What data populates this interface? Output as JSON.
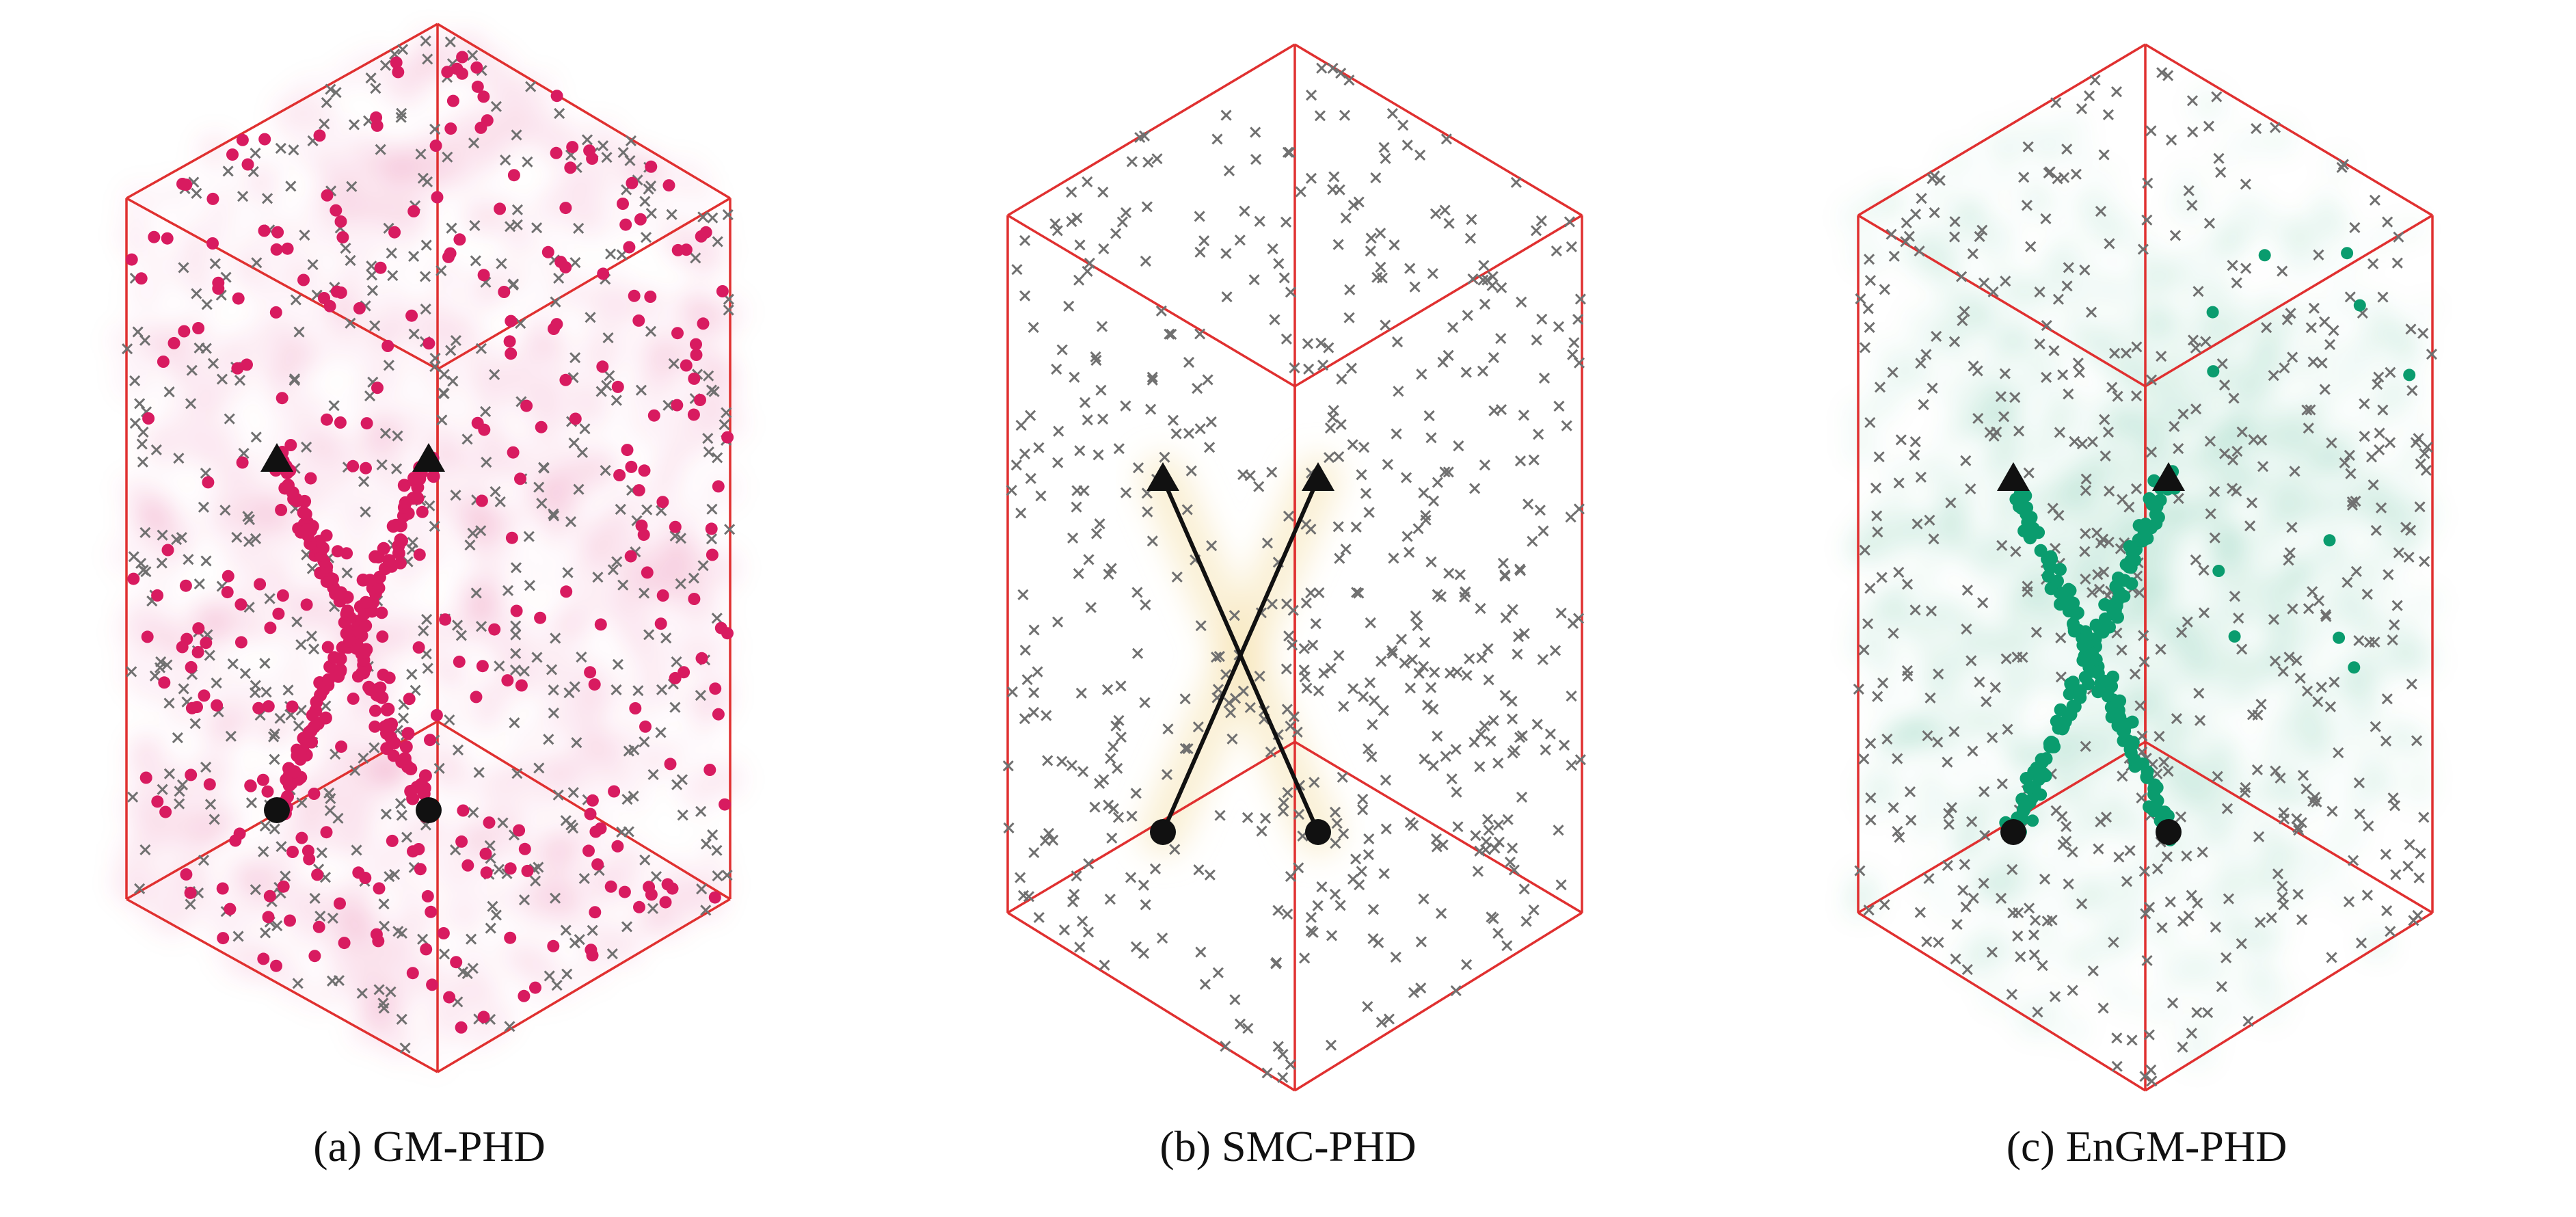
{
  "figure": {
    "panels": [
      {
        "tag": "(a)",
        "label": "GM-PHD"
      },
      {
        "tag": "(b)",
        "label": "SMC-PHD"
      },
      {
        "tag": "(c)",
        "label": "EnGM-PHD"
      }
    ]
  },
  "colors": {
    "box_edge": "#e03030",
    "clutter_marker": "#707070",
    "truth": "#111111",
    "gm_phd": "#d81b60",
    "smc_phd": "#f5e3b3",
    "engm_phd": "#0a9c6e"
  },
  "chart_data": [
    {
      "type": "scatter",
      "title": "",
      "view": "3d",
      "legend": "none",
      "grid": false,
      "estimate_style": "dots",
      "series": [
        {
          "role": "clutter",
          "marker": "x",
          "count": 520
        },
        {
          "role": "true-track-1",
          "marker": "line",
          "start_marker": "circle",
          "end_marker": "triangle"
        },
        {
          "role": "true-track-2",
          "marker": "line",
          "start_marker": "circle",
          "end_marker": "triangle"
        },
        {
          "role": "estimates",
          "marker": "dot",
          "count": 320,
          "track_points": 90
        },
        {
          "role": "intensity-cloud",
          "spread": "whole-box"
        }
      ]
    },
    {
      "type": "scatter",
      "title": "",
      "view": "3d",
      "legend": "none",
      "grid": false,
      "estimate_style": "glow",
      "series": [
        {
          "role": "clutter",
          "marker": "x",
          "count": 560
        },
        {
          "role": "true-track-1",
          "marker": "line",
          "start_marker": "circle",
          "end_marker": "triangle"
        },
        {
          "role": "true-track-2",
          "marker": "line",
          "start_marker": "circle",
          "end_marker": "triangle"
        },
        {
          "role": "estimates",
          "marker": "glow-band",
          "count": 0,
          "track_points": 0
        },
        {
          "role": "intensity-cloud",
          "spread": "near-tracks"
        }
      ]
    },
    {
      "type": "scatter",
      "title": "",
      "view": "3d",
      "legend": "none",
      "grid": false,
      "estimate_style": "dots",
      "series": [
        {
          "role": "clutter",
          "marker": "x",
          "count": 540
        },
        {
          "role": "true-track-1",
          "marker": "line",
          "start_marker": "circle",
          "end_marker": "triangle"
        },
        {
          "role": "true-track-2",
          "marker": "line",
          "start_marker": "circle",
          "end_marker": "triangle"
        },
        {
          "role": "estimates",
          "marker": "dot",
          "count": 14,
          "track_points": 110
        },
        {
          "role": "intensity-cloud",
          "spread": "central"
        }
      ]
    }
  ]
}
